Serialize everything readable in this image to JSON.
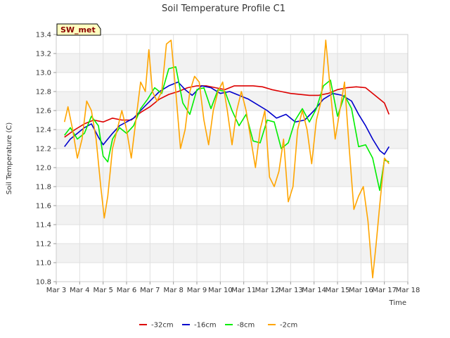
{
  "chart_data": {
    "type": "line",
    "title": "Soil Temperature Profile C1",
    "xlabel": "Time",
    "ylabel": "Soil Temperature (C)",
    "badge": "SW_met",
    "xlim": [
      0,
      15
    ],
    "ylim": [
      10.8,
      13.4
    ],
    "x_ticks": [
      "Mar 3",
      "Mar 4",
      "Mar 5",
      "Mar 6",
      "Mar 7",
      "Mar 8",
      "Mar 9",
      "Mar 10",
      "Mar 11",
      "Mar 12",
      "Mar 13",
      "Mar 14",
      "Mar 15",
      "Mar 16",
      "Mar 17",
      "Mar 18"
    ],
    "y_ticks": [
      "10.8",
      "11.0",
      "11.2",
      "11.4",
      "11.6",
      "11.8",
      "12.0",
      "12.2",
      "12.4",
      "12.6",
      "12.8",
      "13.0",
      "13.2",
      "13.4"
    ],
    "grid": true,
    "legend_position": "bottom",
    "series": [
      {
        "name": "-32cm",
        "color": "#dd0000",
        "x": [
          0.35,
          0.8,
          1.2,
          1.6,
          2.0,
          2.4,
          2.8,
          3.2,
          3.6,
          4.0,
          4.4,
          4.8,
          5.2,
          5.6,
          6.0,
          6.4,
          6.8,
          7.2,
          7.6,
          8.0,
          8.4,
          8.8,
          9.2,
          9.6,
          10.0,
          10.4,
          10.8,
          11.2,
          11.6,
          12.0,
          12.4,
          12.8,
          13.2,
          13.6,
          14.0,
          14.2
        ],
        "y": [
          12.32,
          12.4,
          12.46,
          12.5,
          12.48,
          12.52,
          12.5,
          12.5,
          12.58,
          12.64,
          12.72,
          12.77,
          12.8,
          12.84,
          12.86,
          12.86,
          12.84,
          12.82,
          12.86,
          12.86,
          12.86,
          12.85,
          12.82,
          12.8,
          12.78,
          12.77,
          12.76,
          12.76,
          12.78,
          12.82,
          12.84,
          12.85,
          12.84,
          12.76,
          12.68,
          12.56
        ]
      },
      {
        "name": "-16cm",
        "color": "#0000cc",
        "x": [
          0.35,
          0.6,
          0.9,
          1.2,
          1.5,
          1.8,
          2.0,
          2.2,
          2.4,
          2.7,
          3.0,
          3.3,
          3.6,
          4.0,
          4.4,
          4.8,
          5.2,
          5.5,
          5.8,
          6.2,
          6.6,
          7.0,
          7.4,
          7.8,
          8.2,
          8.6,
          9.0,
          9.4,
          9.8,
          10.2,
          10.6,
          11.0,
          11.4,
          11.8,
          12.2,
          12.6,
          12.9,
          13.2,
          13.5,
          13.8,
          14.0,
          14.2
        ],
        "y": [
          12.22,
          12.3,
          12.36,
          12.42,
          12.46,
          12.32,
          12.24,
          12.3,
          12.36,
          12.44,
          12.48,
          12.52,
          12.6,
          12.7,
          12.8,
          12.86,
          12.9,
          12.82,
          12.76,
          12.86,
          12.84,
          12.78,
          12.8,
          12.76,
          12.72,
          12.66,
          12.6,
          12.52,
          12.56,
          12.48,
          12.5,
          12.6,
          12.72,
          12.78,
          12.76,
          12.7,
          12.56,
          12.44,
          12.3,
          12.18,
          12.14,
          12.22
        ]
      },
      {
        "name": "-8cm",
        "color": "#00ee00",
        "x": [
          0.35,
          0.6,
          0.9,
          1.2,
          1.5,
          1.8,
          2.0,
          2.2,
          2.4,
          2.7,
          3.0,
          3.3,
          3.6,
          3.9,
          4.2,
          4.5,
          4.8,
          5.1,
          5.4,
          5.7,
          6.0,
          6.3,
          6.6,
          6.9,
          7.2,
          7.5,
          7.8,
          8.1,
          8.4,
          8.7,
          9.0,
          9.3,
          9.6,
          9.9,
          10.2,
          10.5,
          10.8,
          11.1,
          11.4,
          11.7,
          12.0,
          12.3,
          12.6,
          12.9,
          13.2,
          13.5,
          13.8,
          14.0,
          14.2
        ],
        "y": [
          12.34,
          12.42,
          12.3,
          12.36,
          12.54,
          12.44,
          12.12,
          12.06,
          12.3,
          12.42,
          12.36,
          12.44,
          12.62,
          12.72,
          12.84,
          12.78,
          13.04,
          13.06,
          12.68,
          12.56,
          12.82,
          12.84,
          12.62,
          12.82,
          12.8,
          12.6,
          12.44,
          12.56,
          12.28,
          12.26,
          12.5,
          12.48,
          12.2,
          12.26,
          12.5,
          12.62,
          12.48,
          12.62,
          12.86,
          12.92,
          12.54,
          12.76,
          12.62,
          12.22,
          12.24,
          12.1,
          11.76,
          12.08,
          12.06
        ]
      },
      {
        "name": "-2cm",
        "color": "#ffa500",
        "x": [
          0.35,
          0.5,
          0.7,
          0.9,
          1.1,
          1.3,
          1.5,
          1.7,
          1.9,
          2.05,
          2.2,
          2.4,
          2.6,
          2.8,
          3.0,
          3.2,
          3.4,
          3.6,
          3.8,
          3.95,
          4.1,
          4.3,
          4.5,
          4.7,
          4.9,
          5.1,
          5.3,
          5.5,
          5.7,
          5.9,
          6.1,
          6.3,
          6.5,
          6.7,
          6.9,
          7.1,
          7.3,
          7.5,
          7.7,
          7.9,
          8.1,
          8.3,
          8.5,
          8.7,
          8.9,
          9.1,
          9.3,
          9.5,
          9.7,
          9.9,
          10.1,
          10.3,
          10.5,
          10.7,
          10.9,
          11.1,
          11.3,
          11.5,
          11.7,
          11.9,
          12.1,
          12.3,
          12.5,
          12.7,
          12.9,
          13.1,
          13.3,
          13.5,
          13.65,
          13.8,
          14.0,
          14.2
        ],
        "y": [
          12.48,
          12.64,
          12.4,
          12.1,
          12.3,
          12.7,
          12.6,
          12.3,
          11.8,
          11.47,
          11.7,
          12.2,
          12.4,
          12.6,
          12.4,
          12.1,
          12.5,
          12.9,
          12.8,
          13.24,
          12.8,
          12.7,
          12.8,
          13.3,
          13.34,
          12.8,
          12.2,
          12.4,
          12.8,
          12.96,
          12.9,
          12.5,
          12.24,
          12.6,
          12.8,
          12.9,
          12.6,
          12.24,
          12.6,
          12.8,
          12.6,
          12.3,
          12.0,
          12.4,
          12.6,
          11.9,
          11.8,
          11.96,
          12.3,
          11.64,
          11.8,
          12.4,
          12.6,
          12.4,
          12.04,
          12.5,
          12.7,
          13.34,
          12.8,
          12.3,
          12.6,
          12.9,
          12.2,
          11.56,
          11.7,
          11.8,
          11.44,
          10.84,
          11.2,
          11.6,
          12.1,
          12.04
        ]
      }
    ]
  }
}
